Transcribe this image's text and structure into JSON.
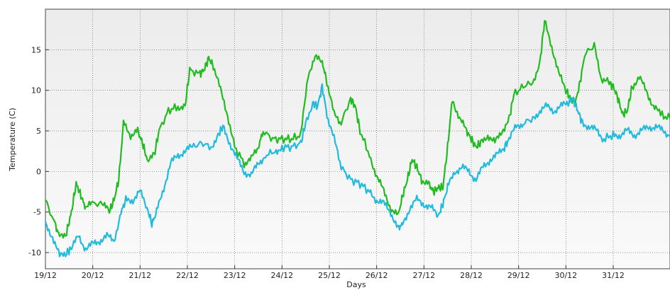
{
  "chart_data": {
    "type": "line",
    "title": "",
    "xlabel": "Days",
    "ylabel": "Temperature (C)",
    "x_ticks": [
      "19/12",
      "20/12",
      "21/12",
      "22/12",
      "23/12",
      "24/12",
      "25/12",
      "26/12",
      "27/12",
      "28/12",
      "29/12",
      "30/12",
      "31/12"
    ],
    "y_ticks": [
      -10,
      -5,
      0,
      5,
      10,
      15
    ],
    "xlim": [
      0,
      13.2
    ],
    "ylim": [
      -12,
      20
    ],
    "grid": true,
    "legend": "none",
    "series": [
      {
        "color": "#22bb22",
        "points": [
          [
            0.0,
            -3.5
          ],
          [
            0.2,
            -6.5
          ],
          [
            0.3,
            -8.0
          ],
          [
            0.45,
            -7.5
          ],
          [
            0.55,
            -5.0
          ],
          [
            0.65,
            -1.5
          ],
          [
            0.75,
            -3.0
          ],
          [
            0.85,
            -4.5
          ],
          [
            1.0,
            -4.0
          ],
          [
            1.2,
            -4.0
          ],
          [
            1.35,
            -5.0
          ],
          [
            1.45,
            -3.5
          ],
          [
            1.55,
            -1.0
          ],
          [
            1.65,
            6.0
          ],
          [
            1.8,
            4.5
          ],
          [
            1.95,
            5.0
          ],
          [
            2.05,
            3.5
          ],
          [
            2.15,
            1.5
          ],
          [
            2.3,
            2.0
          ],
          [
            2.4,
            5.0
          ],
          [
            2.6,
            7.5
          ],
          [
            2.8,
            8.0
          ],
          [
            2.95,
            8.0
          ],
          [
            3.05,
            12.5
          ],
          [
            3.25,
            12.0
          ],
          [
            3.35,
            12.5
          ],
          [
            3.45,
            14.0
          ],
          [
            3.55,
            13.0
          ],
          [
            3.7,
            10.0
          ],
          [
            3.85,
            7.0
          ],
          [
            4.0,
            3.0
          ],
          [
            4.2,
            1.0
          ],
          [
            4.35,
            1.5
          ],
          [
            4.5,
            3.0
          ],
          [
            4.6,
            5.0
          ],
          [
            4.8,
            4.0
          ],
          [
            5.0,
            4.0
          ],
          [
            5.2,
            4.0
          ],
          [
            5.4,
            4.5
          ],
          [
            5.55,
            12.0
          ],
          [
            5.7,
            14.0
          ],
          [
            5.85,
            13.5
          ],
          [
            5.95,
            11.0
          ],
          [
            6.1,
            7.0
          ],
          [
            6.25,
            6.0
          ],
          [
            6.45,
            9.0
          ],
          [
            6.55,
            8.0
          ],
          [
            6.65,
            5.0
          ],
          [
            6.85,
            2.0
          ],
          [
            7.0,
            -0.5
          ],
          [
            7.15,
            -2.5
          ],
          [
            7.3,
            -4.5
          ],
          [
            7.45,
            -5.5
          ],
          [
            7.55,
            -3.0
          ],
          [
            7.65,
            -1.0
          ],
          [
            7.75,
            1.5
          ],
          [
            7.85,
            0.5
          ],
          [
            7.95,
            -1.0
          ],
          [
            8.1,
            -1.5
          ],
          [
            8.2,
            -2.5
          ],
          [
            8.3,
            -2.0
          ],
          [
            8.4,
            -2.0
          ],
          [
            8.5,
            3.0
          ],
          [
            8.6,
            9.0
          ],
          [
            8.75,
            6.5
          ],
          [
            8.9,
            5.0
          ],
          [
            9.0,
            4.0
          ],
          [
            9.1,
            3.0
          ],
          [
            9.2,
            3.5
          ],
          [
            9.35,
            4.5
          ],
          [
            9.5,
            3.5
          ],
          [
            9.65,
            5.0
          ],
          [
            9.8,
            6.5
          ],
          [
            9.9,
            9.5
          ],
          [
            10.1,
            10.5
          ],
          [
            10.3,
            11.0
          ],
          [
            10.45,
            13.5
          ],
          [
            10.55,
            18.5
          ],
          [
            10.7,
            15.5
          ],
          [
            10.85,
            12.0
          ],
          [
            11.0,
            10.0
          ],
          [
            11.1,
            9.0
          ],
          [
            11.2,
            8.5
          ],
          [
            11.3,
            11.0
          ],
          [
            11.4,
            14.5
          ],
          [
            11.6,
            15.5
          ],
          [
            11.75,
            11.5
          ],
          [
            11.9,
            11.0
          ],
          [
            12.0,
            10.5
          ],
          [
            12.1,
            9.0
          ],
          [
            12.2,
            7.0
          ],
          [
            12.3,
            7.5
          ],
          [
            12.4,
            10.5
          ],
          [
            12.55,
            11.5
          ],
          [
            12.7,
            10.0
          ],
          [
            12.85,
            8.0
          ],
          [
            13.0,
            7.0
          ],
          [
            13.2,
            6.5
          ]
        ]
      },
      {
        "color": "#22bbdd",
        "points": [
          [
            0.0,
            -6.5
          ],
          [
            0.15,
            -8.0
          ],
          [
            0.3,
            -10.5
          ],
          [
            0.45,
            -10.0
          ],
          [
            0.55,
            -9.5
          ],
          [
            0.7,
            -8.0
          ],
          [
            0.85,
            -9.5
          ],
          [
            1.0,
            -9.0
          ],
          [
            1.15,
            -8.5
          ],
          [
            1.3,
            -8.0
          ],
          [
            1.45,
            -8.5
          ],
          [
            1.6,
            -5.0
          ],
          [
            1.7,
            -3.5
          ],
          [
            1.85,
            -3.5
          ],
          [
            2.0,
            -2.5
          ],
          [
            2.15,
            -4.5
          ],
          [
            2.25,
            -6.5
          ],
          [
            2.35,
            -5.0
          ],
          [
            2.5,
            -2.0
          ],
          [
            2.65,
            1.0
          ],
          [
            2.8,
            2.0
          ],
          [
            2.95,
            2.5
          ],
          [
            3.1,
            3.0
          ],
          [
            3.3,
            3.5
          ],
          [
            3.5,
            3.0
          ],
          [
            3.65,
            4.5
          ],
          [
            3.75,
            5.5
          ],
          [
            3.9,
            3.5
          ],
          [
            4.05,
            1.5
          ],
          [
            4.2,
            0.0
          ],
          [
            4.35,
            -0.5
          ],
          [
            4.5,
            1.0
          ],
          [
            4.65,
            2.0
          ],
          [
            4.85,
            2.5
          ],
          [
            5.0,
            3.0
          ],
          [
            5.2,
            3.0
          ],
          [
            5.4,
            3.5
          ],
          [
            5.5,
            6.0
          ],
          [
            5.65,
            8.5
          ],
          [
            5.75,
            8.0
          ],
          [
            5.85,
            10.5
          ],
          [
            5.95,
            7.0
          ],
          [
            6.1,
            4.0
          ],
          [
            6.25,
            0.5
          ],
          [
            6.45,
            -1.0
          ],
          [
            6.65,
            -1.5
          ],
          [
            6.85,
            -2.5
          ],
          [
            7.0,
            -3.5
          ],
          [
            7.15,
            -4.0
          ],
          [
            7.3,
            -5.0
          ],
          [
            7.45,
            -7.0
          ],
          [
            7.55,
            -6.5
          ],
          [
            7.7,
            -4.5
          ],
          [
            7.85,
            -3.5
          ],
          [
            8.0,
            -4.0
          ],
          [
            8.15,
            -4.5
          ],
          [
            8.3,
            -5.5
          ],
          [
            8.4,
            -4.0
          ],
          [
            8.5,
            -2.0
          ],
          [
            8.65,
            0.0
          ],
          [
            8.8,
            0.5
          ],
          [
            8.95,
            0.0
          ],
          [
            9.1,
            -1.0
          ],
          [
            9.25,
            0.5
          ],
          [
            9.4,
            1.5
          ],
          [
            9.55,
            2.0
          ],
          [
            9.7,
            3.0
          ],
          [
            9.8,
            4.0
          ],
          [
            9.95,
            5.5
          ],
          [
            10.1,
            6.0
          ],
          [
            10.3,
            6.5
          ],
          [
            10.45,
            7.5
          ],
          [
            10.6,
            8.0
          ],
          [
            10.75,
            7.5
          ],
          [
            10.9,
            8.0
          ],
          [
            11.05,
            8.5
          ],
          [
            11.15,
            9.0
          ],
          [
            11.25,
            7.5
          ],
          [
            11.35,
            6.0
          ],
          [
            11.5,
            5.5
          ],
          [
            11.65,
            5.0
          ],
          [
            11.8,
            4.0
          ],
          [
            12.0,
            4.5
          ],
          [
            12.15,
            4.5
          ],
          [
            12.3,
            5.0
          ],
          [
            12.45,
            4.5
          ],
          [
            12.6,
            5.0
          ],
          [
            12.75,
            5.5
          ],
          [
            12.9,
            5.5
          ],
          [
            13.05,
            5.0
          ],
          [
            13.2,
            4.5
          ]
        ]
      }
    ]
  }
}
